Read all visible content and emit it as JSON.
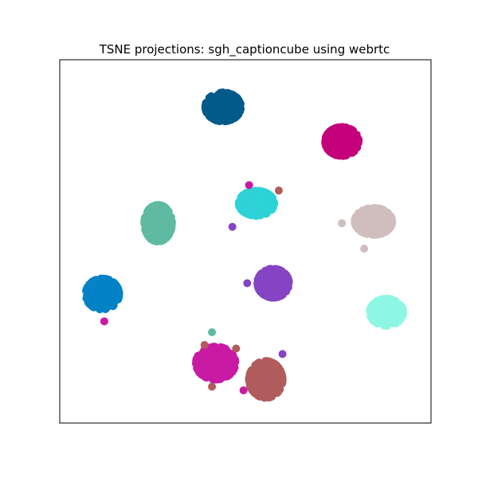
{
  "chart_data": {
    "type": "scatter",
    "title": "TSNE projections: sgh_captioncube using webrtc",
    "xlabel": "",
    "ylabel": "",
    "axes_visible": false,
    "grid": false,
    "xlim": [
      0,
      100
    ],
    "ylim": [
      0,
      100
    ],
    "clusters": [
      {
        "color": "#025A8A",
        "center": [
          44,
          87
        ],
        "spread": [
          3.6,
          3.0
        ],
        "n": 260
      },
      {
        "color": "#C4007A",
        "center": [
          76,
          77.5
        ],
        "spread": [
          3.4,
          3.0
        ],
        "n": 240
      },
      {
        "color": "#5EBAA0",
        "center": [
          26.5,
          55
        ],
        "spread": [
          2.8,
          3.8
        ],
        "n": 230
      },
      {
        "color": "#2DD3D6",
        "center": [
          53,
          60.5
        ],
        "spread": [
          3.6,
          2.6
        ],
        "n": 230
      },
      {
        "color": "#D0BEBE",
        "center": [
          84.5,
          55.5
        ],
        "spread": [
          3.8,
          2.8
        ],
        "n": 230
      },
      {
        "color": "#0382C6",
        "center": [
          11.5,
          35.5
        ],
        "spread": [
          3.4,
          3.2
        ],
        "n": 250
      },
      {
        "color": "#8444C4",
        "center": [
          57.5,
          38.5
        ],
        "spread": [
          3.2,
          3.0
        ],
        "n": 230
      },
      {
        "color": "#8EF6E4",
        "center": [
          88,
          30.5
        ],
        "spread": [
          3.4,
          2.8
        ],
        "n": 230
      },
      {
        "color": "#C91AA4",
        "center": [
          42,
          16.5
        ],
        "spread": [
          4.0,
          3.4
        ],
        "n": 270
      },
      {
        "color": "#B05C5C",
        "center": [
          55.5,
          12
        ],
        "spread": [
          3.4,
          3.8
        ],
        "n": 270
      }
    ],
    "outliers": [
      {
        "color": "#C91AA4",
        "x": 51,
        "y": 65.5
      },
      {
        "color": "#B05C5C",
        "x": 59,
        "y": 64
      },
      {
        "color": "#8444C4",
        "x": 46.5,
        "y": 54
      },
      {
        "color": "#8444C4",
        "x": 50.5,
        "y": 38.5
      },
      {
        "color": "#C91AA4",
        "x": 12,
        "y": 28
      },
      {
        "color": "#5EBAA0",
        "x": 41,
        "y": 25
      },
      {
        "color": "#B05C5C",
        "x": 39,
        "y": 21.5
      },
      {
        "color": "#B05C5C",
        "x": 47.5,
        "y": 20.5
      },
      {
        "color": "#8444C4",
        "x": 60,
        "y": 19
      },
      {
        "color": "#C91AA4",
        "x": 49.5,
        "y": 9
      },
      {
        "color": "#D0BEBE",
        "x": 76,
        "y": 55
      },
      {
        "color": "#D0BEBE",
        "x": 82,
        "y": 48
      },
      {
        "color": "#B05C5C",
        "x": 41,
        "y": 10
      }
    ]
  }
}
